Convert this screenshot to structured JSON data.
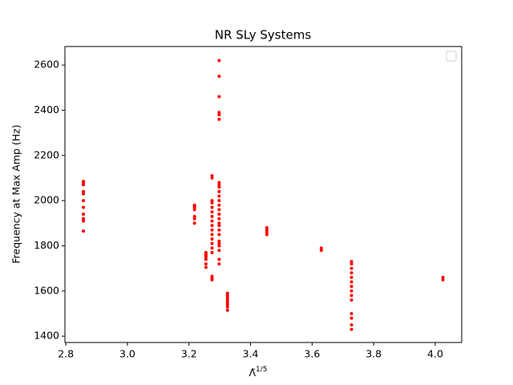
{
  "chart_data": {
    "type": "scatter",
    "title": "NR SLy Systems",
    "x_label": "Λ̃",
    "x_label_sup": "1/5",
    "y_label": "Frequency at Max Amp (Hz)",
    "color": "#ff0000",
    "x": [
      2.857,
      2.857,
      2.857,
      2.857,
      2.857,
      2.857,
      2.857,
      2.857,
      2.857,
      2.857,
      2.857,
      3.218,
      3.218,
      3.218,
      3.218,
      3.218,
      3.218,
      3.218,
      3.218,
      3.255,
      3.255,
      3.255,
      3.255,
      3.255,
      3.255,
      3.255,
      3.255,
      3.275,
      3.275,
      3.275,
      3.275,
      3.275,
      3.275,
      3.275,
      3.275,
      3.275,
      3.275,
      3.275,
      3.275,
      3.275,
      3.275,
      3.275,
      3.275,
      3.275,
      3.275,
      3.298,
      3.298,
      3.298,
      3.298,
      3.298,
      3.298,
      3.298,
      3.298,
      3.298,
      3.298,
      3.298,
      3.298,
      3.298,
      3.298,
      3.298,
      3.298,
      3.298,
      3.298,
      3.298,
      3.298,
      3.298,
      3.298,
      3.298,
      3.298,
      3.298,
      3.298,
      3.325,
      3.325,
      3.325,
      3.325,
      3.325,
      3.325,
      3.325,
      3.325,
      3.453,
      3.453,
      3.453,
      3.453,
      3.63,
      3.63,
      3.728,
      3.728,
      3.728,
      3.728,
      3.728,
      3.728,
      3.728,
      3.728,
      3.728,
      3.728,
      3.728,
      3.728,
      3.728,
      3.728,
      4.025,
      4.025
    ],
    "values": [
      1865,
      1910,
      1920,
      1940,
      1970,
      2000,
      2030,
      2040,
      2070,
      2080,
      2085,
      1900,
      1920,
      1930,
      1960,
      1965,
      1970,
      1975,
      1980,
      1705,
      1720,
      1740,
      1750,
      1755,
      1760,
      1765,
      1770,
      1650,
      1655,
      1665,
      1770,
      1790,
      1810,
      1830,
      1850,
      1870,
      1890,
      1910,
      1930,
      1950,
      1970,
      1990,
      2000,
      2100,
      2110,
      1720,
      1740,
      1780,
      1800,
      1810,
      1820,
      1850,
      1870,
      1890,
      1900,
      1920,
      1940,
      1960,
      1980,
      2000,
      2020,
      2040,
      2060,
      2070,
      2080,
      2360,
      2380,
      2390,
      2460,
      2550,
      2620,
      1515,
      1530,
      1540,
      1550,
      1560,
      1570,
      1580,
      1590,
      1850,
      1860,
      1870,
      1880,
      1780,
      1790,
      1430,
      1450,
      1480,
      1500,
      1560,
      1580,
      1600,
      1620,
      1640,
      1660,
      1680,
      1700,
      1720,
      1730,
      1650,
      1660
    ],
    "xlim": [
      2.797,
      4.086
    ],
    "xticks": [
      2.8,
      {
        "value": 3,
        "label": "3.0"
      },
      3.2,
      3.4,
      3.6,
      3.8,
      {
        "value": 4,
        "label": "4.0"
      }
    ],
    "ylim": [
      1372,
      2682
    ],
    "yticks": [
      1400,
      1600,
      1800,
      2000,
      2200,
      2400,
      2600
    ]
  }
}
